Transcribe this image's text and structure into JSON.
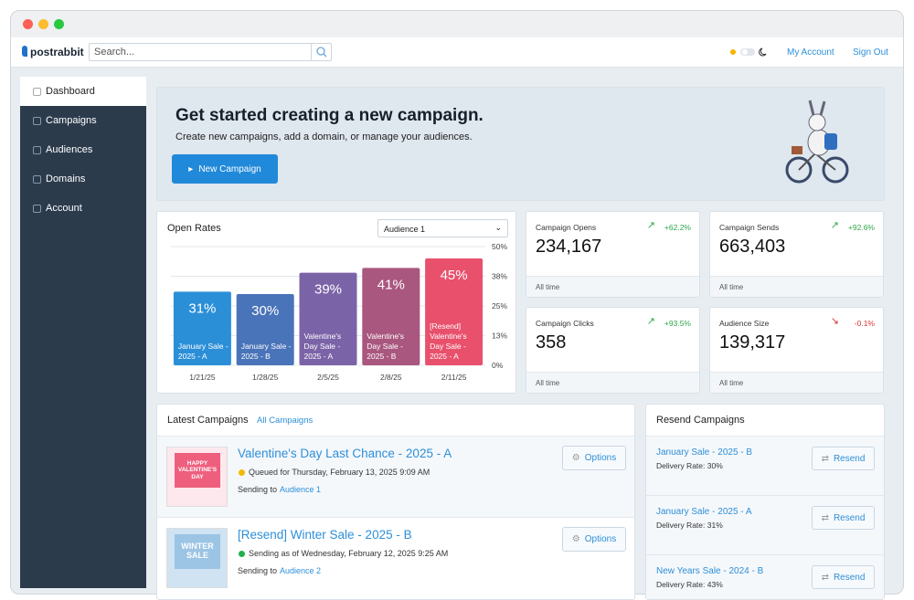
{
  "nav": {
    "brand": "postrabbit",
    "search_placeholder": "Search...",
    "links": [
      "My Account",
      "Sign Out"
    ]
  },
  "sidebar": {
    "items": [
      "Dashboard",
      "Campaigns",
      "Audiences",
      "Domains",
      "Account"
    ],
    "active": 0
  },
  "hero": {
    "title": "Get started creating a new campaign.",
    "subtitle": "Create new campaigns, add a domain, or manage your audiences.",
    "button": "New Campaign"
  },
  "chart_data": {
    "type": "bar",
    "title": "Open Rates",
    "selector": "Audience 1",
    "categories": [
      "1/21/25",
      "1/28/25",
      "2/5/25",
      "2/8/25",
      "2/11/25"
    ],
    "bar_labels": [
      "January Sale - 2025 - A",
      "January Sale - 2025 - B",
      "Valentine's Day Sale - 2025 - A",
      "Valentine's Day Sale - 2025 - B",
      "[Resend] Valentine's Day Sale - 2025 - A"
    ],
    "values": [
      31,
      30,
      39,
      41,
      45
    ],
    "value_labels": [
      "31%",
      "30%",
      "39%",
      "41%",
      "45%"
    ],
    "colors": [
      "#2b8fd8",
      "#4a74b9",
      "#7b63a8",
      "#a9577f",
      "#e8506c"
    ],
    "ylim": [
      0,
      50
    ],
    "yticks": [
      {
        "value": 0,
        "label": "0%"
      },
      {
        "value": 12.5,
        "label": "13%"
      },
      {
        "value": 25,
        "label": "25%"
      },
      {
        "value": 37.5,
        "label": "38%"
      },
      {
        "value": 50,
        "label": "50%"
      }
    ],
    "grid": true
  },
  "stats": [
    {
      "label": "Campaign Opens",
      "value": "234,167",
      "change": "+62.2%",
      "trend": "up",
      "footer": "All time"
    },
    {
      "label": "Campaign Sends",
      "value": "663,403",
      "change": "+92.6%",
      "trend": "up",
      "footer": "All time"
    },
    {
      "label": "Campaign Clicks",
      "value": "358",
      "change": "+93.5%",
      "trend": "up",
      "footer": "All time"
    },
    {
      "label": "Audience Size",
      "value": "139,317",
      "change": "-0.1%",
      "trend": "down",
      "footer": "All time"
    }
  ],
  "latest": {
    "title": "Latest Campaigns",
    "link": "All Campaigns",
    "items": [
      {
        "name": "Valentine's Day Last Chance - 2025 - A",
        "status": "Queued for Thursday, February 13, 2025 9:09 AM",
        "status_color": "#f5b800",
        "sending": "Sending to",
        "audience": "Audience 1",
        "button": "Options",
        "thumb": [
          "HAPPY",
          "VALENTINE'S",
          "DAY"
        ]
      },
      {
        "name": "[Resend] Winter Sale - 2025 - B",
        "status": "Sending as of Wednesday, February 12, 2025 9:25 AM",
        "status_color": "#22b14c",
        "sending": "Sending to",
        "audience": "Audience 2",
        "button": "Options",
        "thumb": [
          "WINTER",
          "SALE"
        ]
      }
    ]
  },
  "resend": {
    "title": "Resend Campaigns",
    "items": [
      {
        "name": "January Sale - 2025 - B",
        "rate": "Delivery Rate: 30%",
        "button": "Resend"
      },
      {
        "name": "January Sale - 2025 - A",
        "rate": "Delivery Rate: 31%",
        "button": "Resend"
      },
      {
        "name": "New Years Sale - 2024 - B",
        "rate": "Delivery Rate: 43%",
        "button": "Resend"
      }
    ]
  }
}
